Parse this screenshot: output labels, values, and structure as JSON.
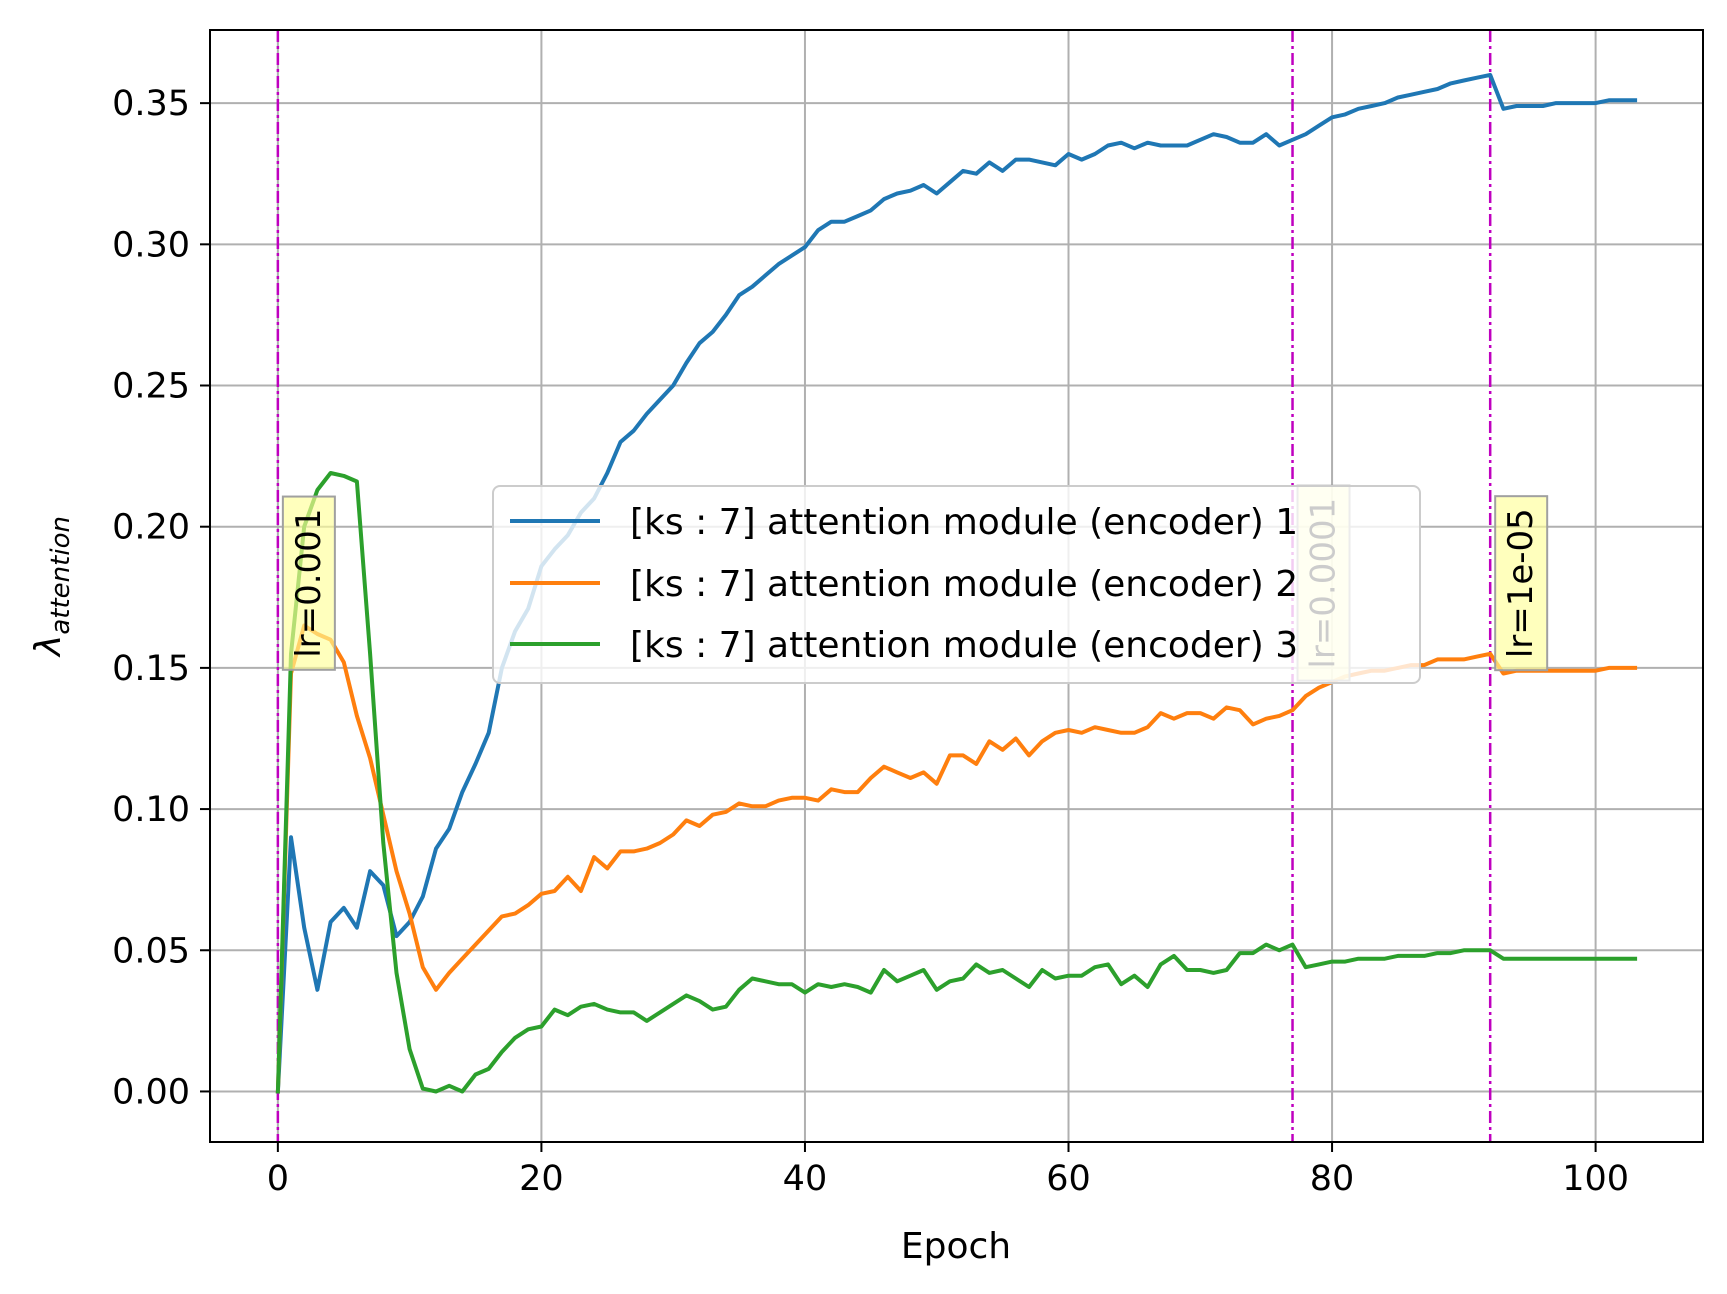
{
  "chart_data": {
    "type": "line",
    "title": "",
    "xlabel": "Epoch",
    "ylabel": {
      "base": "λ",
      "subscript": "attention"
    },
    "xlim": [
      -5.15,
      108.15
    ],
    "ylim": [
      -0.0179,
      0.3759
    ],
    "xticks": [
      0,
      20,
      40,
      60,
      80,
      100
    ],
    "xtick_labels": [
      "0",
      "20",
      "40",
      "60",
      "80",
      "100"
    ],
    "yticks": [
      0.0,
      0.05,
      0.1,
      0.15,
      0.2,
      0.25,
      0.3,
      0.35
    ],
    "ytick_labels": [
      "0.00",
      "0.05",
      "0.10",
      "0.15",
      "0.20",
      "0.25",
      "0.30",
      "0.35"
    ],
    "grid": true,
    "legend_position": "center",
    "series": [
      {
        "name": "[ks : 7] attention module (encoder) 1",
        "color": "#1f77b4",
        "points": [
          [
            0,
            0.0
          ],
          [
            1,
            0.09
          ],
          [
            2,
            0.058
          ],
          [
            3,
            0.036
          ],
          [
            4,
            0.06
          ],
          [
            5,
            0.065
          ],
          [
            6,
            0.058
          ],
          [
            7,
            0.078
          ],
          [
            8,
            0.073
          ],
          [
            9,
            0.055
          ],
          [
            10,
            0.06
          ],
          [
            11,
            0.069
          ],
          [
            12,
            0.086
          ],
          [
            13,
            0.093
          ],
          [
            14,
            0.106
          ],
          [
            15,
            0.116
          ],
          [
            16,
            0.127
          ],
          [
            17,
            0.15
          ],
          [
            18,
            0.163
          ],
          [
            19,
            0.171
          ],
          [
            20,
            0.186
          ],
          [
            21,
            0.192
          ],
          [
            22,
            0.197
          ],
          [
            23,
            0.205
          ],
          [
            24,
            0.21
          ],
          [
            25,
            0.219
          ],
          [
            26,
            0.23
          ],
          [
            27,
            0.234
          ],
          [
            28,
            0.24
          ],
          [
            29,
            0.245
          ],
          [
            30,
            0.25
          ],
          [
            31,
            0.258
          ],
          [
            32,
            0.265
          ],
          [
            33,
            0.269
          ],
          [
            34,
            0.275
          ],
          [
            35,
            0.282
          ],
          [
            36,
            0.285
          ],
          [
            37,
            0.289
          ],
          [
            38,
            0.293
          ],
          [
            39,
            0.296
          ],
          [
            40,
            0.299
          ],
          [
            41,
            0.305
          ],
          [
            42,
            0.308
          ],
          [
            43,
            0.308
          ],
          [
            44,
            0.31
          ],
          [
            45,
            0.312
          ],
          [
            46,
            0.316
          ],
          [
            47,
            0.318
          ],
          [
            48,
            0.319
          ],
          [
            49,
            0.321
          ],
          [
            50,
            0.318
          ],
          [
            51,
            0.322
          ],
          [
            52,
            0.326
          ],
          [
            53,
            0.325
          ],
          [
            54,
            0.329
          ],
          [
            55,
            0.326
          ],
          [
            56,
            0.33
          ],
          [
            57,
            0.33
          ],
          [
            58,
            0.329
          ],
          [
            59,
            0.328
          ],
          [
            60,
            0.332
          ],
          [
            61,
            0.33
          ],
          [
            62,
            0.332
          ],
          [
            63,
            0.335
          ],
          [
            64,
            0.336
          ],
          [
            65,
            0.334
          ],
          [
            66,
            0.336
          ],
          [
            67,
            0.335
          ],
          [
            68,
            0.335
          ],
          [
            69,
            0.335
          ],
          [
            70,
            0.337
          ],
          [
            71,
            0.339
          ],
          [
            72,
            0.338
          ],
          [
            73,
            0.336
          ],
          [
            74,
            0.336
          ],
          [
            75,
            0.339
          ],
          [
            76,
            0.335
          ],
          [
            77,
            0.337
          ],
          [
            78,
            0.339
          ],
          [
            79,
            0.342
          ],
          [
            80,
            0.345
          ],
          [
            81,
            0.346
          ],
          [
            82,
            0.348
          ],
          [
            83,
            0.349
          ],
          [
            84,
            0.35
          ],
          [
            85,
            0.352
          ],
          [
            86,
            0.353
          ],
          [
            87,
            0.354
          ],
          [
            88,
            0.355
          ],
          [
            89,
            0.357
          ],
          [
            90,
            0.358
          ],
          [
            91,
            0.359
          ],
          [
            92,
            0.36
          ],
          [
            93,
            0.348
          ],
          [
            94,
            0.349
          ],
          [
            95,
            0.349
          ],
          [
            96,
            0.349
          ],
          [
            97,
            0.35
          ],
          [
            98,
            0.35
          ],
          [
            99,
            0.35
          ],
          [
            100,
            0.35
          ],
          [
            101,
            0.351
          ],
          [
            102,
            0.351
          ],
          [
            103,
            0.351
          ]
        ]
      },
      {
        "name": "[ks : 7] attention module (encoder) 2",
        "color": "#ff7f0e",
        "points": [
          [
            0,
            0.0
          ],
          [
            1,
            0.148
          ],
          [
            2,
            0.165
          ],
          [
            3,
            0.162
          ],
          [
            4,
            0.16
          ],
          [
            5,
            0.152
          ],
          [
            6,
            0.133
          ],
          [
            7,
            0.118
          ],
          [
            8,
            0.098
          ],
          [
            9,
            0.078
          ],
          [
            10,
            0.063
          ],
          [
            11,
            0.044
          ],
          [
            12,
            0.036
          ],
          [
            13,
            0.042
          ],
          [
            14,
            0.047
          ],
          [
            15,
            0.052
          ],
          [
            16,
            0.057
          ],
          [
            17,
            0.062
          ],
          [
            18,
            0.063
          ],
          [
            19,
            0.066
          ],
          [
            20,
            0.07
          ],
          [
            21,
            0.071
          ],
          [
            22,
            0.076
          ],
          [
            23,
            0.071
          ],
          [
            24,
            0.083
          ],
          [
            25,
            0.079
          ],
          [
            26,
            0.085
          ],
          [
            27,
            0.085
          ],
          [
            28,
            0.086
          ],
          [
            29,
            0.088
          ],
          [
            30,
            0.091
          ],
          [
            31,
            0.096
          ],
          [
            32,
            0.094
          ],
          [
            33,
            0.098
          ],
          [
            34,
            0.099
          ],
          [
            35,
            0.102
          ],
          [
            36,
            0.101
          ],
          [
            37,
            0.101
          ],
          [
            38,
            0.103
          ],
          [
            39,
            0.104
          ],
          [
            40,
            0.104
          ],
          [
            41,
            0.103
          ],
          [
            42,
            0.107
          ],
          [
            43,
            0.106
          ],
          [
            44,
            0.106
          ],
          [
            45,
            0.111
          ],
          [
            46,
            0.115
          ],
          [
            47,
            0.113
          ],
          [
            48,
            0.111
          ],
          [
            49,
            0.113
          ],
          [
            50,
            0.109
          ],
          [
            51,
            0.119
          ],
          [
            52,
            0.119
          ],
          [
            53,
            0.116
          ],
          [
            54,
            0.124
          ],
          [
            55,
            0.121
          ],
          [
            56,
            0.125
          ],
          [
            57,
            0.119
          ],
          [
            58,
            0.124
          ],
          [
            59,
            0.127
          ],
          [
            60,
            0.128
          ],
          [
            61,
            0.127
          ],
          [
            62,
            0.129
          ],
          [
            63,
            0.128
          ],
          [
            64,
            0.127
          ],
          [
            65,
            0.127
          ],
          [
            66,
            0.129
          ],
          [
            67,
            0.134
          ],
          [
            68,
            0.132
          ],
          [
            69,
            0.134
          ],
          [
            70,
            0.134
          ],
          [
            71,
            0.132
          ],
          [
            72,
            0.136
          ],
          [
            73,
            0.135
          ],
          [
            74,
            0.13
          ],
          [
            75,
            0.132
          ],
          [
            76,
            0.133
          ],
          [
            77,
            0.135
          ],
          [
            78,
            0.14
          ],
          [
            79,
            0.143
          ],
          [
            80,
            0.145
          ],
          [
            81,
            0.147
          ],
          [
            82,
            0.148
          ],
          [
            83,
            0.149
          ],
          [
            84,
            0.149
          ],
          [
            85,
            0.15
          ],
          [
            86,
            0.151
          ],
          [
            87,
            0.151
          ],
          [
            88,
            0.153
          ],
          [
            89,
            0.153
          ],
          [
            90,
            0.153
          ],
          [
            91,
            0.154
          ],
          [
            92,
            0.155
          ],
          [
            93,
            0.148
          ],
          [
            94,
            0.149
          ],
          [
            95,
            0.149
          ],
          [
            96,
            0.149
          ],
          [
            97,
            0.149
          ],
          [
            98,
            0.149
          ],
          [
            99,
            0.149
          ],
          [
            100,
            0.149
          ],
          [
            101,
            0.15
          ],
          [
            102,
            0.15
          ],
          [
            103,
            0.15
          ]
        ]
      },
      {
        "name": "[ks : 7] attention module (encoder) 3",
        "color": "#2ca02c",
        "points": [
          [
            0,
            0.0
          ],
          [
            1,
            0.155
          ],
          [
            2,
            0.2
          ],
          [
            3,
            0.213
          ],
          [
            4,
            0.219
          ],
          [
            5,
            0.218
          ],
          [
            6,
            0.216
          ],
          [
            7,
            0.155
          ],
          [
            8,
            0.088
          ],
          [
            9,
            0.042
          ],
          [
            10,
            0.015
          ],
          [
            11,
            0.001
          ],
          [
            12,
            0.0
          ],
          [
            13,
            0.002
          ],
          [
            14,
            0.0
          ],
          [
            15,
            0.006
          ],
          [
            16,
            0.008
          ],
          [
            17,
            0.014
          ],
          [
            18,
            0.019
          ],
          [
            19,
            0.022
          ],
          [
            20,
            0.023
          ],
          [
            21,
            0.029
          ],
          [
            22,
            0.027
          ],
          [
            23,
            0.03
          ],
          [
            24,
            0.031
          ],
          [
            25,
            0.029
          ],
          [
            26,
            0.028
          ],
          [
            27,
            0.028
          ],
          [
            28,
            0.025
          ],
          [
            29,
            0.028
          ],
          [
            30,
            0.031
          ],
          [
            31,
            0.034
          ],
          [
            32,
            0.032
          ],
          [
            33,
            0.029
          ],
          [
            34,
            0.03
          ],
          [
            35,
            0.036
          ],
          [
            36,
            0.04
          ],
          [
            37,
            0.039
          ],
          [
            38,
            0.038
          ],
          [
            39,
            0.038
          ],
          [
            40,
            0.035
          ],
          [
            41,
            0.038
          ],
          [
            42,
            0.037
          ],
          [
            43,
            0.038
          ],
          [
            44,
            0.037
          ],
          [
            45,
            0.035
          ],
          [
            46,
            0.043
          ],
          [
            47,
            0.039
          ],
          [
            48,
            0.041
          ],
          [
            49,
            0.043
          ],
          [
            50,
            0.036
          ],
          [
            51,
            0.039
          ],
          [
            52,
            0.04
          ],
          [
            53,
            0.045
          ],
          [
            54,
            0.042
          ],
          [
            55,
            0.043
          ],
          [
            56,
            0.04
          ],
          [
            57,
            0.037
          ],
          [
            58,
            0.043
          ],
          [
            59,
            0.04
          ],
          [
            60,
            0.041
          ],
          [
            61,
            0.041
          ],
          [
            62,
            0.044
          ],
          [
            63,
            0.045
          ],
          [
            64,
            0.038
          ],
          [
            65,
            0.041
          ],
          [
            66,
            0.037
          ],
          [
            67,
            0.045
          ],
          [
            68,
            0.048
          ],
          [
            69,
            0.043
          ],
          [
            70,
            0.043
          ],
          [
            71,
            0.042
          ],
          [
            72,
            0.043
          ],
          [
            73,
            0.049
          ],
          [
            74,
            0.049
          ],
          [
            75,
            0.052
          ],
          [
            76,
            0.05
          ],
          [
            77,
            0.052
          ],
          [
            78,
            0.044
          ],
          [
            79,
            0.045
          ],
          [
            80,
            0.046
          ],
          [
            81,
            0.046
          ],
          [
            82,
            0.047
          ],
          [
            83,
            0.047
          ],
          [
            84,
            0.047
          ],
          [
            85,
            0.048
          ],
          [
            86,
            0.048
          ],
          [
            87,
            0.048
          ],
          [
            88,
            0.049
          ],
          [
            89,
            0.049
          ],
          [
            90,
            0.05
          ],
          [
            91,
            0.05
          ],
          [
            92,
            0.05
          ],
          [
            93,
            0.047
          ],
          [
            94,
            0.047
          ],
          [
            95,
            0.047
          ],
          [
            96,
            0.047
          ],
          [
            97,
            0.047
          ],
          [
            98,
            0.047
          ],
          [
            99,
            0.047
          ],
          [
            100,
            0.047
          ],
          [
            101,
            0.047
          ],
          [
            102,
            0.047
          ],
          [
            103,
            0.047
          ]
        ]
      }
    ],
    "lr_markers": [
      {
        "epoch": 0,
        "label": "lr=0.001",
        "label_y": 0.18
      },
      {
        "epoch": 77,
        "label": "lr=0.0001",
        "label_y": 0.18
      },
      {
        "epoch": 92,
        "label": "lr=1e-05",
        "label_y": 0.18
      }
    ],
    "colors": {
      "grid": "#b0b0b0",
      "lr_line": "#bf00bf",
      "lr_box_fill": "#ffff99",
      "lr_box_border": "#a0a0a0"
    }
  }
}
